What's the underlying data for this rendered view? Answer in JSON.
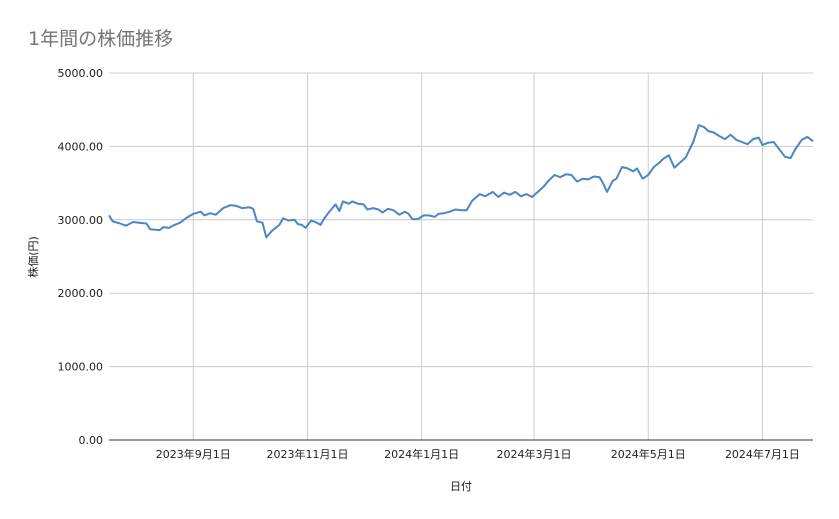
{
  "chart_data": {
    "type": "line",
    "title": "1年間の株価推移",
    "xlabel": "日付",
    "ylabel": "株価(円)",
    "ylim": [
      0,
      5000
    ],
    "yticks": [
      "0.00",
      "1000.00",
      "2000.00",
      "3000.00",
      "4000.00",
      "5000.00"
    ],
    "xlim": [
      "2023-07-18",
      "2024-07-28"
    ],
    "xticks": [
      {
        "date": "2023-09-01",
        "label": "2023年9月1日"
      },
      {
        "date": "2023-11-01",
        "label": "2023年11月1日"
      },
      {
        "date": "2024-01-01",
        "label": "2024年1月1日"
      },
      {
        "date": "2024-03-01",
        "label": "2024年3月1日"
      },
      {
        "date": "2024-05-01",
        "label": "2024年5月1日"
      },
      {
        "date": "2024-07-01",
        "label": "2024年7月1日"
      }
    ],
    "grid": true,
    "legend": "none",
    "series_color": "#4a86c8",
    "series": [
      {
        "points": [
          [
            "2023-07-18",
            3060
          ],
          [
            "2023-07-20",
            2980
          ],
          [
            "2023-07-24",
            2950
          ],
          [
            "2023-07-27",
            2920
          ],
          [
            "2023-07-31",
            2970
          ],
          [
            "2023-08-03",
            2960
          ],
          [
            "2023-08-07",
            2950
          ],
          [
            "2023-08-09",
            2870
          ],
          [
            "2023-08-14",
            2860
          ],
          [
            "2023-08-16",
            2900
          ],
          [
            "2023-08-19",
            2890
          ],
          [
            "2023-08-22",
            2930
          ],
          [
            "2023-08-25",
            2960
          ],
          [
            "2023-08-28",
            3020
          ],
          [
            "2023-09-01",
            3080
          ],
          [
            "2023-09-05",
            3110
          ],
          [
            "2023-09-07",
            3060
          ],
          [
            "2023-09-10",
            3090
          ],
          [
            "2023-09-13",
            3070
          ],
          [
            "2023-09-17",
            3160
          ],
          [
            "2023-09-21",
            3200
          ],
          [
            "2023-09-24",
            3190
          ],
          [
            "2023-09-27",
            3160
          ],
          [
            "2023-10-01",
            3170
          ],
          [
            "2023-10-03",
            3150
          ],
          [
            "2023-10-05",
            2980
          ],
          [
            "2023-10-08",
            2960
          ],
          [
            "2023-10-10",
            2760
          ],
          [
            "2023-10-13",
            2850
          ],
          [
            "2023-10-17",
            2930
          ],
          [
            "2023-10-19",
            3020
          ],
          [
            "2023-10-22",
            2990
          ],
          [
            "2023-10-25",
            3000
          ],
          [
            "2023-10-27",
            2940
          ],
          [
            "2023-10-29",
            2930
          ],
          [
            "2023-10-31",
            2890
          ],
          [
            "2023-11-03",
            2990
          ],
          [
            "2023-11-06",
            2960
          ],
          [
            "2023-11-08",
            2930
          ],
          [
            "2023-11-10",
            3020
          ],
          [
            "2023-11-13",
            3120
          ],
          [
            "2023-11-16",
            3210
          ],
          [
            "2023-11-18",
            3120
          ],
          [
            "2023-11-20",
            3250
          ],
          [
            "2023-11-23",
            3220
          ],
          [
            "2023-11-25",
            3250
          ],
          [
            "2023-11-28",
            3220
          ],
          [
            "2023-12-01",
            3210
          ],
          [
            "2023-12-03",
            3140
          ],
          [
            "2023-12-06",
            3160
          ],
          [
            "2023-12-09",
            3140
          ],
          [
            "2023-12-11",
            3100
          ],
          [
            "2023-12-14",
            3150
          ],
          [
            "2023-12-17",
            3130
          ],
          [
            "2023-12-20",
            3070
          ],
          [
            "2023-12-23",
            3110
          ],
          [
            "2023-12-25",
            3080
          ],
          [
            "2023-12-27",
            3010
          ],
          [
            "2023-12-30",
            3010
          ],
          [
            "2024-01-02",
            3060
          ],
          [
            "2024-01-05",
            3060
          ],
          [
            "2024-01-08",
            3040
          ],
          [
            "2024-01-10",
            3080
          ],
          [
            "2024-01-13",
            3090
          ],
          [
            "2024-01-16",
            3110
          ],
          [
            "2024-01-19",
            3140
          ],
          [
            "2024-01-22",
            3130
          ],
          [
            "2024-01-25",
            3130
          ],
          [
            "2024-01-28",
            3260
          ],
          [
            "2024-02-01",
            3350
          ],
          [
            "2024-02-04",
            3320
          ],
          [
            "2024-02-08",
            3380
          ],
          [
            "2024-02-11",
            3310
          ],
          [
            "2024-02-14",
            3370
          ],
          [
            "2024-02-17",
            3340
          ],
          [
            "2024-02-20",
            3380
          ],
          [
            "2024-02-23",
            3320
          ],
          [
            "2024-02-26",
            3350
          ],
          [
            "2024-02-29",
            3310
          ],
          [
            "2024-03-03",
            3380
          ],
          [
            "2024-03-06",
            3450
          ],
          [
            "2024-03-09",
            3540
          ],
          [
            "2024-03-12",
            3610
          ],
          [
            "2024-03-15",
            3580
          ],
          [
            "2024-03-18",
            3620
          ],
          [
            "2024-03-21",
            3610
          ],
          [
            "2024-03-24",
            3520
          ],
          [
            "2024-03-27",
            3560
          ],
          [
            "2024-03-30",
            3550
          ],
          [
            "2024-04-02",
            3590
          ],
          [
            "2024-04-05",
            3580
          ],
          [
            "2024-04-07",
            3490
          ],
          [
            "2024-04-09",
            3380
          ],
          [
            "2024-04-12",
            3530
          ],
          [
            "2024-04-14",
            3560
          ],
          [
            "2024-04-17",
            3720
          ],
          [
            "2024-04-20",
            3700
          ],
          [
            "2024-04-23",
            3660
          ],
          [
            "2024-04-25",
            3700
          ],
          [
            "2024-04-28",
            3560
          ],
          [
            "2024-05-01",
            3610
          ],
          [
            "2024-05-04",
            3720
          ],
          [
            "2024-05-07",
            3780
          ],
          [
            "2024-05-09",
            3830
          ],
          [
            "2024-05-12",
            3880
          ],
          [
            "2024-05-15",
            3710
          ],
          [
            "2024-05-18",
            3780
          ],
          [
            "2024-05-21",
            3850
          ],
          [
            "2024-05-25",
            4060
          ],
          [
            "2024-05-28",
            4290
          ],
          [
            "2024-05-31",
            4260
          ],
          [
            "2024-06-02",
            4210
          ],
          [
            "2024-06-05",
            4190
          ],
          [
            "2024-06-08",
            4140
          ],
          [
            "2024-06-11",
            4100
          ],
          [
            "2024-06-14",
            4160
          ],
          [
            "2024-06-17",
            4090
          ],
          [
            "2024-06-20",
            4060
          ],
          [
            "2024-06-23",
            4030
          ],
          [
            "2024-06-26",
            4100
          ],
          [
            "2024-06-29",
            4120
          ],
          [
            "2024-07-01",
            4020
          ],
          [
            "2024-07-04",
            4050
          ],
          [
            "2024-07-07",
            4060
          ],
          [
            "2024-07-10",
            3960
          ],
          [
            "2024-07-13",
            3860
          ],
          [
            "2024-07-16",
            3840
          ],
          [
            "2024-07-19",
            3980
          ],
          [
            "2024-07-22",
            4090
          ],
          [
            "2024-07-25",
            4130
          ],
          [
            "2024-07-28",
            4070
          ]
        ]
      }
    ]
  }
}
